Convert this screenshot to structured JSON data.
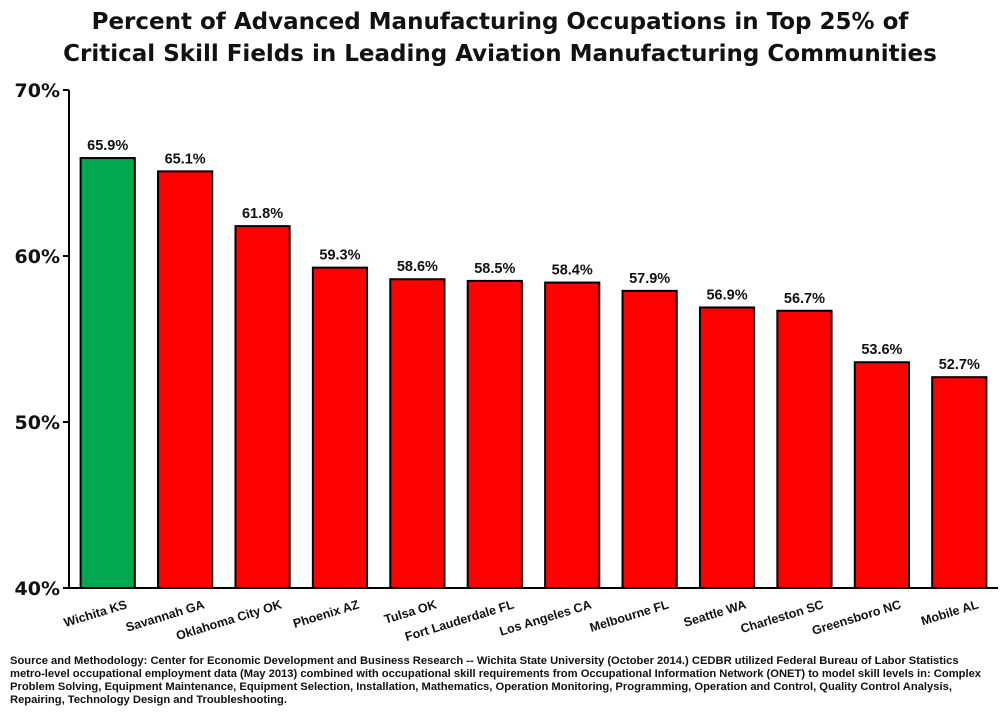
{
  "title_lines": [
    "Percent of Advanced Manufacturing Occupations in Top 25% of",
    "Critical Skill Fields in Leading Aviation Manufacturing Communities"
  ],
  "source_note": "Source and Methodology: Center for Economic Development and Business Research -- Wichita State University (October 2014.) CEDBR utilized Federal Bureau of Labor Statistics metro-level occupational employment data (May 2013) combined with occupational skill requirements from Occupational Information Network (ONET) to model skill levels in: Complex Problem Solving, Equipment Maintenance, Equipment Selection, Installation, Mathematics, Operation Monitoring, Programming, Operation and Control, Quality Control Analysis, Repairing, Technology Design and Troubleshooting.",
  "colors": {
    "highlight": "#00a84f",
    "bar": "#ff0000",
    "axis": "#000000"
  },
  "chart_data": {
    "type": "bar",
    "categories": [
      "Wichita KS",
      "Savannah GA",
      "Oklahoma City OK",
      "Phoenix AZ",
      "Tulsa OK",
      "Fort Lauderdale FL",
      "Los Angeles CA",
      "Melbourne FL",
      "Seattle WA",
      "Charleston SC",
      "Greensboro NC",
      "Mobile AL"
    ],
    "values": [
      65.9,
      65.1,
      61.8,
      59.3,
      58.6,
      58.5,
      58.4,
      57.9,
      56.9,
      56.7,
      53.6,
      52.7
    ],
    "data_labels": [
      "65.9%",
      "65.1%",
      "61.8%",
      "59.3%",
      "58.6%",
      "58.5%",
      "58.4%",
      "57.9%",
      "56.9%",
      "56.7%",
      "53.6%",
      "52.7%"
    ],
    "highlight_index": 0,
    "ylim": [
      40,
      70
    ],
    "yticks": [
      40,
      50,
      60,
      70
    ],
    "ytick_labels": [
      "40%",
      "50%",
      "60%",
      "70%"
    ],
    "grid": false,
    "legend": "none",
    "xlabel": "",
    "ylabel": ""
  }
}
